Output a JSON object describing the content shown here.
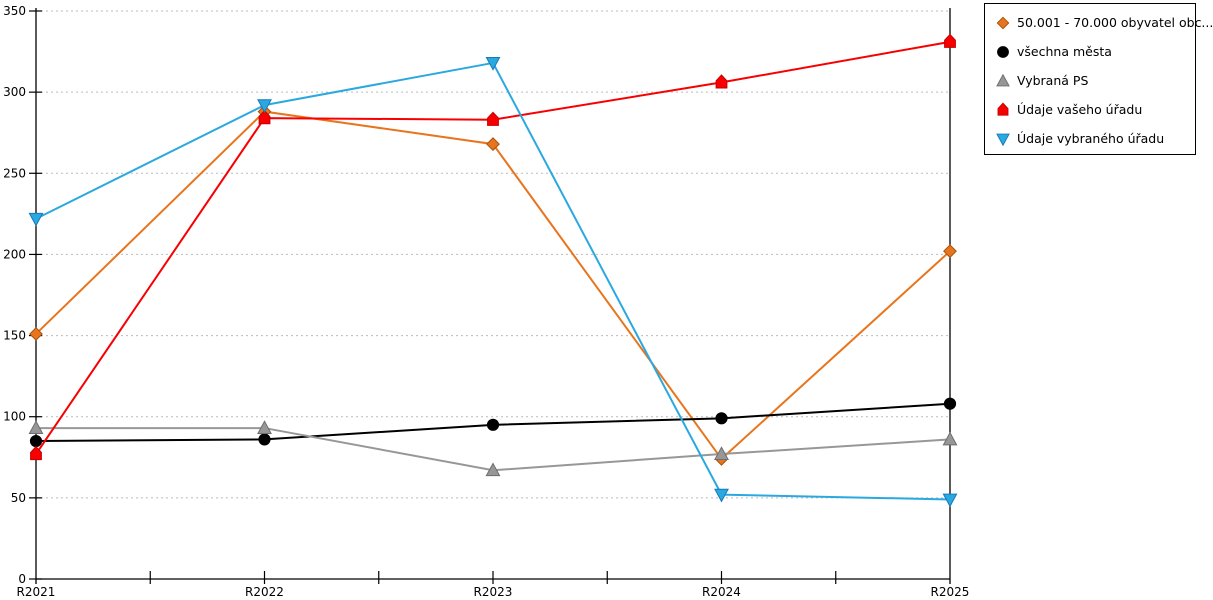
{
  "chart_data": {
    "type": "line",
    "title": "",
    "xlabel": "",
    "ylabel": "",
    "categories": [
      "R2021",
      "R2022",
      "R2023",
      "R2024",
      "R2025"
    ],
    "ylim": [
      0,
      350
    ],
    "ytick_step": 50,
    "y_tick_labels": [
      "0",
      "50",
      "100",
      "150",
      "200",
      "250",
      "300",
      "350"
    ],
    "grid": "horizontal dotted",
    "legend_position": "top-right outside",
    "series": [
      {
        "name": "50.001 - 70.000 obyvatel obc...",
        "marker": "diamond",
        "color": "#E8751D",
        "edge_color": "#A85208",
        "values": [
          151,
          288,
          268,
          74,
          202
        ]
      },
      {
        "name": "všechna města",
        "marker": "circle",
        "color": "#000000",
        "edge_color": "#000000",
        "values": [
          85,
          86,
          95,
          99,
          108
        ]
      },
      {
        "name": "Vybraná PS",
        "marker": "triangle-up",
        "color": "#979797",
        "edge_color": "#6E6E6E",
        "values": [
          93,
          93,
          67,
          77,
          86
        ]
      },
      {
        "name": "Údaje vašeho úřadu",
        "marker": "house",
        "color": "#F80000",
        "edge_color": "#C40000",
        "values": [
          77,
          284,
          283,
          306,
          331
        ]
      },
      {
        "name": "Údaje vybraného úřadu",
        "marker": "triangle-down",
        "color": "#2AA9E0",
        "edge_color": "#1779B8",
        "values": [
          222,
          292,
          318,
          52,
          49
        ]
      }
    ],
    "colors": {
      "grid": "#BBBBBB",
      "axis": "#000000",
      "background": "#FFFFFF"
    }
  }
}
